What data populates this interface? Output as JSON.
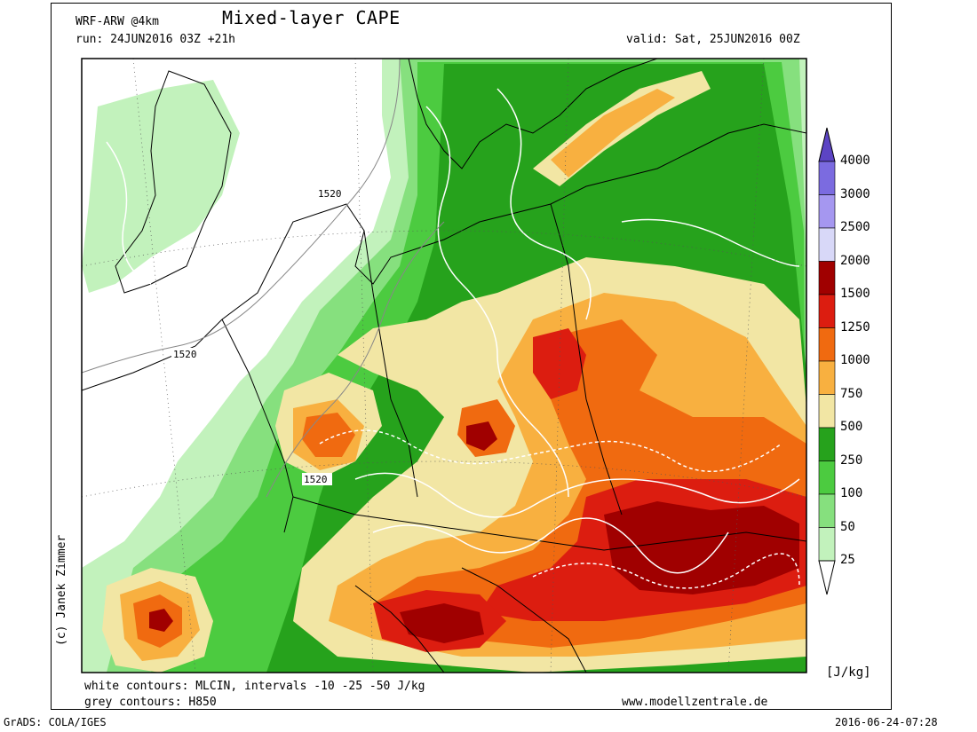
{
  "header": {
    "model": "WRF-ARW @4km",
    "title": "Mixed-layer CAPE",
    "run": "run: 24JUN2016 03Z +21h",
    "valid": "valid: Sat, 25JUN2016 00Z"
  },
  "footer": {
    "line1": "white contours: MLCIN, intervals -10 -25 -50 J/kg",
    "line2": "grey contours: H850",
    "website": "www.modellzentrale.de",
    "grads": "GrADS: COLA/IGES",
    "timestamp": "2016-06-24-07:28"
  },
  "credit": "(c) Janek Zimmer",
  "legend": {
    "unit": "[J/kg]",
    "levels": [
      "4000",
      "3000",
      "2500",
      "2000",
      "1500",
      "1250",
      "1000",
      "750",
      "500",
      "250",
      "100",
      "50",
      "25"
    ],
    "colors": [
      "#5c44c4",
      "#7b6be0",
      "#a597f0",
      "#d8d8f8",
      "#a00000",
      "#dc1d10",
      "#f06a10",
      "#f8b040",
      "#f2e6a4",
      "#26a21c",
      "#4ccb40",
      "#86e07e",
      "#c2f2bc"
    ]
  },
  "map": {
    "contour_labels": [
      "1520",
      "1520",
      "1520"
    ],
    "colors": {
      "ocean": "#ffffff",
      "c25": "#c2f2bc",
      "c50": "#86e07e",
      "c100": "#4ccb40",
      "c250": "#26a21c",
      "c500": "#f2e6a4",
      "c750": "#f8b040",
      "c1000": "#f06a10",
      "c1250": "#dc1d10",
      "c1500": "#a00000"
    }
  }
}
